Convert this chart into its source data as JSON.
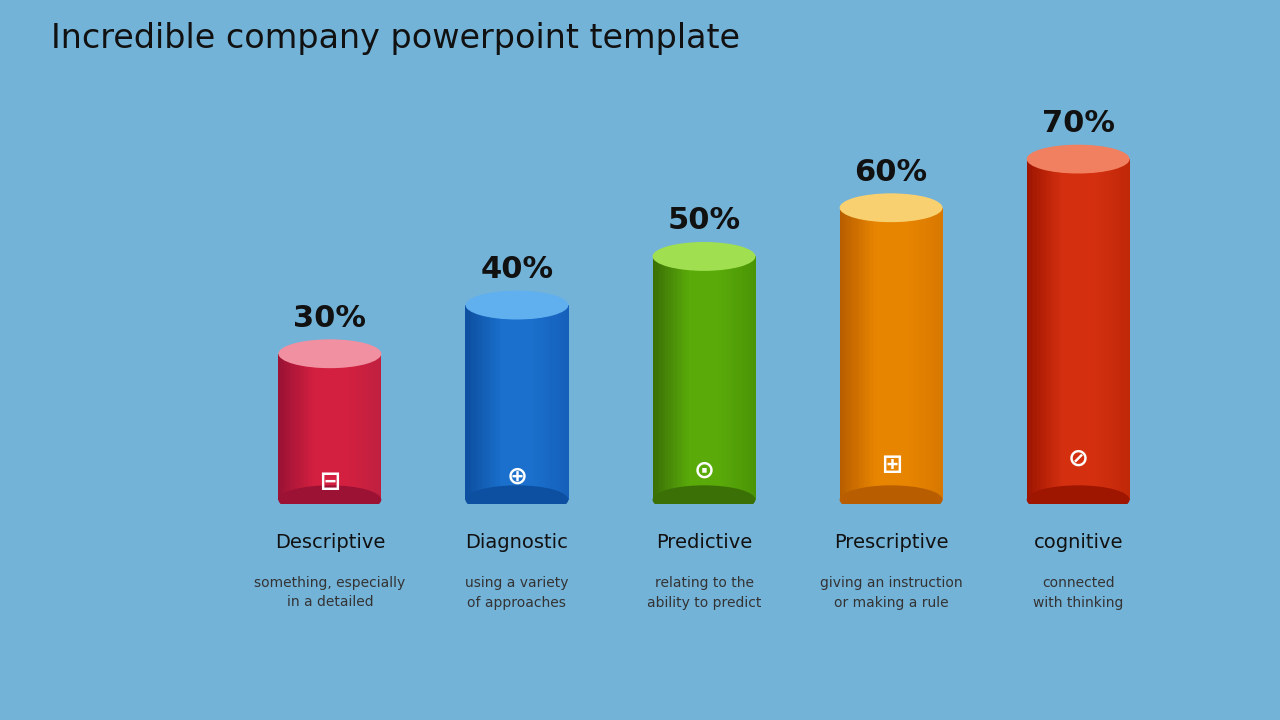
{
  "title": "Incredible company powerpoint template",
  "background_color": "#74b3d8",
  "title_color": "#111111",
  "categories": [
    "Descriptive",
    "Diagnostic",
    "Predictive",
    "Prescriptive",
    "cognitive"
  ],
  "values": [
    30,
    40,
    50,
    60,
    70
  ],
  "labels": [
    "30%",
    "40%",
    "50%",
    "60%",
    "70%"
  ],
  "descriptions": [
    "something, especially\nin a detailed",
    "using a variety\nof approaches",
    "relating to the\nability to predict",
    "giving an instruction\nor making a rule",
    "connected\nwith thinking"
  ],
  "bar_colors_left": [
    "#9b1235",
    "#0d4fa0",
    "#3a7005",
    "#b85e00",
    "#9e1500"
  ],
  "bar_colors_mid": [
    "#d42040",
    "#1a70cc",
    "#5aaa0a",
    "#e88500",
    "#d43010"
  ],
  "bar_colors_right": [
    "#c02040",
    "#1560bb",
    "#4a9505",
    "#d87800",
    "#c02808"
  ],
  "bar_colors_top": [
    "#e85070",
    "#3a90e0",
    "#80cc30",
    "#f0b030",
    "#e86040"
  ],
  "bar_colors_top_center": [
    "#f090a0",
    "#60b0f0",
    "#a0e050",
    "#f8d070",
    "#f08060"
  ],
  "icon_symbols": [
    "❐",
    "⚲",
    "✔",
    "☰",
    "?"
  ],
  "cat_fontsize": 14,
  "desc_fontsize": 10,
  "pct_fontsize": 22,
  "title_fontsize": 24
}
